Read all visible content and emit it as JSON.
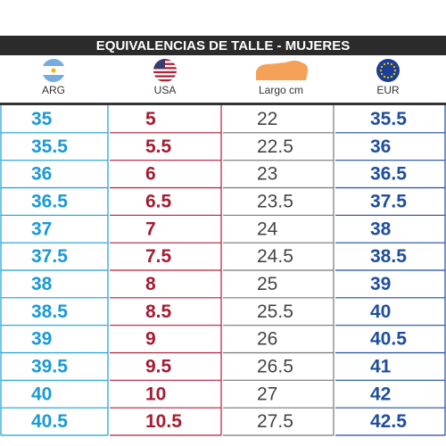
{
  "header": {
    "title": "EQUIVALENCIAS DE TALLE - MUJERES"
  },
  "columns": [
    {
      "label": "ARG"
    },
    {
      "label": "USA"
    },
    {
      "label": "Largo cm"
    },
    {
      "label": "EUR"
    }
  ],
  "rows": [
    [
      "35",
      "5",
      "22",
      "35.5"
    ],
    [
      "35.5",
      "5.5",
      "22.5",
      "36"
    ],
    [
      "36",
      "6",
      "23",
      "36.5"
    ],
    [
      "36.5",
      "6.5",
      "23.5",
      "37.5"
    ],
    [
      "37",
      "7",
      "24",
      "38"
    ],
    [
      "37.5",
      "7.5",
      "24.5",
      "38.5"
    ],
    [
      "38",
      "8",
      "25",
      "39"
    ],
    [
      "38.5",
      "8.5",
      "25.5",
      "40"
    ],
    [
      "39",
      "9",
      "26",
      "40.5"
    ],
    [
      "39.5",
      "9.5",
      "26.5",
      "41"
    ],
    [
      "40",
      "10",
      "27",
      "42"
    ],
    [
      "40.5",
      "10.5",
      "27.5",
      "42.5"
    ]
  ]
}
